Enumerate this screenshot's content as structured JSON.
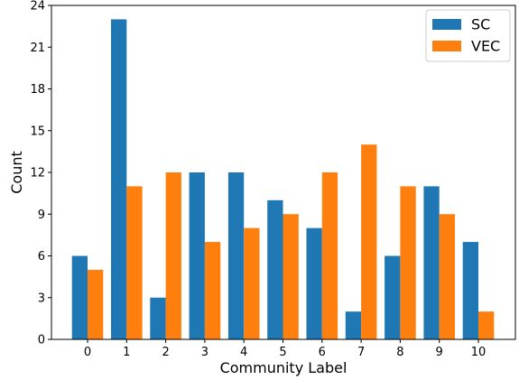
{
  "chart_data": {
    "type": "bar",
    "xlabel": "Community Label",
    "ylabel": "Count",
    "categories": [
      "0",
      "1",
      "2",
      "3",
      "4",
      "5",
      "6",
      "7",
      "8",
      "9",
      "10"
    ],
    "series": [
      {
        "name": "SC",
        "color": "#1f77b4",
        "values": [
          6,
          23,
          3,
          12,
          12,
          10,
          8,
          2,
          6,
          11,
          7
        ]
      },
      {
        "name": "VEC",
        "color": "#ff7f0e",
        "values": [
          5,
          11,
          12,
          7,
          8,
          9,
          12,
          14,
          11,
          9,
          2
        ]
      }
    ],
    "ylim": [
      0,
      24
    ],
    "yticks": [
      "0",
      "3",
      "6",
      "9",
      "12",
      "15",
      "18",
      "21",
      "24"
    ],
    "legend_position": "top-right",
    "grid": false
  }
}
